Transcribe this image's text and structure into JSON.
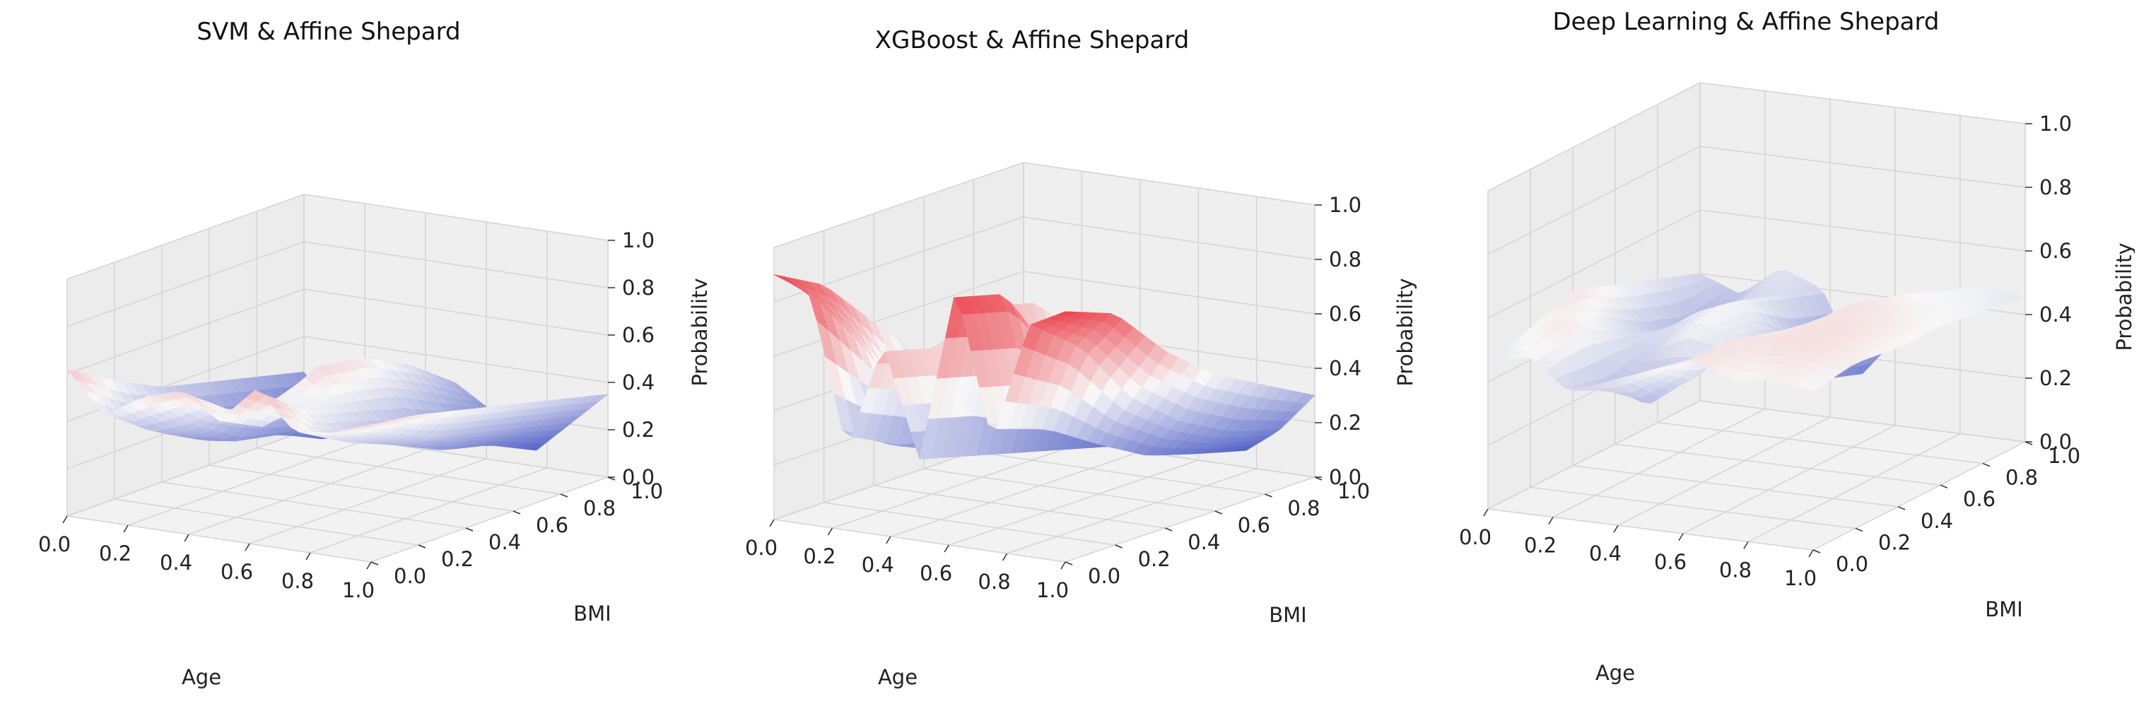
{
  "chart_data": [
    {
      "type": "surface",
      "title": "SVM & Affine Shepard",
      "xlabel": "Age",
      "ylabel": "BMI",
      "zlabel": "Probability",
      "xlim": [
        0,
        1
      ],
      "ylim": [
        0,
        1
      ],
      "zlim": [
        0,
        1
      ],
      "x_ticks": [
        "0.0",
        "0.2",
        "0.4",
        "0.6",
        "0.8",
        "1.0"
      ],
      "y_ticks": [
        "0.0",
        "0.2",
        "0.4",
        "0.6",
        "0.8",
        "1.0"
      ],
      "z_ticks": [
        "0.0",
        "0.2",
        "0.4",
        "0.6",
        "0.8",
        "1.0"
      ],
      "colormap": [
        "#3b4cc0",
        "#f7f7f7",
        "#e8202a"
      ],
      "grid": true,
      "surface_z": [
        [
          0.62,
          0.45,
          0.55,
          0.6,
          0.5,
          0.66,
          0.5,
          0.52,
          0.58
        ],
        [
          0.5,
          0.3,
          0.35,
          0.45,
          0.4,
          0.5,
          0.38,
          0.45,
          0.55
        ],
        [
          0.4,
          0.2,
          0.22,
          0.4,
          0.58,
          0.45,
          0.3,
          0.35,
          0.5
        ],
        [
          0.35,
          0.15,
          0.18,
          0.3,
          0.55,
          0.4,
          0.2,
          0.3,
          0.45
        ],
        [
          0.3,
          0.1,
          0.08,
          0.25,
          0.45,
          0.3,
          0.15,
          0.25,
          0.4
        ],
        [
          0.25,
          0.05,
          0.1,
          0.2,
          0.3,
          0.2,
          0.05,
          0.2,
          0.35
        ]
      ]
    },
    {
      "type": "surface",
      "title": "XGBoost & Affine Shepard",
      "xlabel": "Age",
      "ylabel": "BMI",
      "zlabel": "Probability",
      "xlim": [
        0,
        1
      ],
      "ylim": [
        0,
        1
      ],
      "zlim": [
        0,
        1
      ],
      "x_ticks": [
        "0.0",
        "0.2",
        "0.4",
        "0.6",
        "0.8",
        "1.0"
      ],
      "y_ticks": [
        "0.0",
        "0.2",
        "0.4",
        "0.6",
        "0.8",
        "1.0"
      ],
      "z_ticks": [
        "0.0",
        "0.2",
        "0.4",
        "0.6",
        "0.8",
        "1.0"
      ],
      "colormap": [
        "#3b4cc0",
        "#f7f7f7",
        "#e8202a"
      ],
      "grid": true,
      "surface_z": [
        [
          0.9,
          0.85,
          0.3,
          0.7,
          0.3,
          0.95,
          0.4,
          0.85,
          0.92
        ],
        [
          0.8,
          0.6,
          0.2,
          0.65,
          0.25,
          0.9,
          0.35,
          0.7,
          0.85
        ],
        [
          0.6,
          0.3,
          0.15,
          0.75,
          0.2,
          0.6,
          0.25,
          0.45,
          0.65
        ],
        [
          0.4,
          0.2,
          0.1,
          0.7,
          0.15,
          0.4,
          0.15,
          0.3,
          0.5
        ],
        [
          0.3,
          0.15,
          0.05,
          0.5,
          0.1,
          0.3,
          0.1,
          0.2,
          0.4
        ],
        [
          0.2,
          0.1,
          0.05,
          0.3,
          0.05,
          0.2,
          0.05,
          0.15,
          0.3
        ]
      ]
    },
    {
      "type": "surface",
      "title": "Deep Learning & Affine Shepard",
      "xlabel": "Age",
      "ylabel": "BMI",
      "zlabel": "Probability",
      "xlim": [
        0,
        1
      ],
      "ylim": [
        0,
        1
      ],
      "zlim": [
        0,
        1
      ],
      "x_ticks": [
        "0.0",
        "0.2",
        "0.4",
        "0.6",
        "0.8",
        "1.0"
      ],
      "y_ticks": [
        "0.0",
        "0.2",
        "0.4",
        "0.6",
        "0.8",
        "1.0"
      ],
      "z_ticks": [
        "0.0",
        "0.2",
        "0.4",
        "0.6",
        "0.8",
        "1.0"
      ],
      "colormap": [
        "#3b4cc0",
        "#f7f7f7",
        "#e8202a"
      ],
      "grid": true,
      "surface_z": [
        [
          0.45,
          0.5,
          0.4,
          0.45,
          0.5,
          0.55,
          0.5,
          0.52,
          0.5
        ],
        [
          0.5,
          0.55,
          0.35,
          0.3,
          0.4,
          0.55,
          0.55,
          0.55,
          0.52
        ],
        [
          0.55,
          0.45,
          0.4,
          0.5,
          0.45,
          0.5,
          0.55,
          0.55,
          0.5
        ],
        [
          0.5,
          0.35,
          0.45,
          0.5,
          0.4,
          0.45,
          0.55,
          0.52,
          0.5
        ],
        [
          0.45,
          0.3,
          0.4,
          0.45,
          0.2,
          0.35,
          0.5,
          0.5,
          0.48
        ],
        [
          0.4,
          0.35,
          0.45,
          0.4,
          0.15,
          0.3,
          0.45,
          0.48,
          0.45
        ]
      ]
    }
  ]
}
